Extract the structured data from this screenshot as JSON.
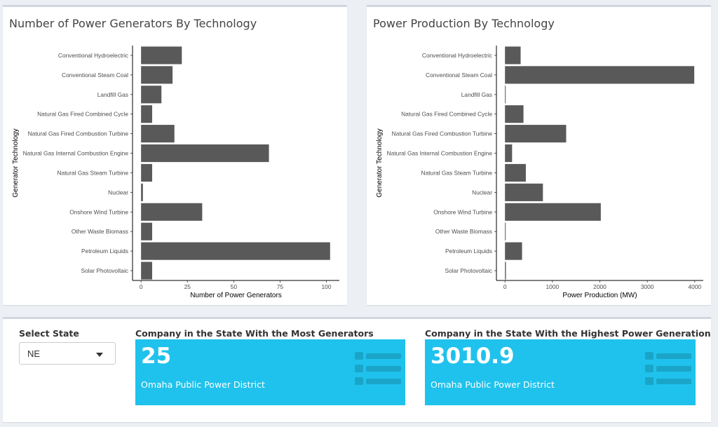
{
  "charts": {
    "left": {
      "title": "Number of Power Generators By Technology",
      "chart_data": {
        "type": "bar",
        "orientation": "horizontal",
        "categories": [
          "Conventional Hydroelectric",
          "Conventional Steam Coal",
          "Landfill Gas",
          "Natural Gas Fired Combined Cycle",
          "Natural Gas Fired Combustion Turbine",
          "Natural Gas Internal Combustion Engine",
          "Natural Gas Steam Turbine",
          "Nuclear",
          "Onshore Wind Turbine",
          "Other Waste Biomass",
          "Petroleum Liquids",
          "Solar Photovoltaic"
        ],
        "values": [
          22,
          17,
          11,
          6,
          18,
          69,
          6,
          1,
          33,
          6,
          102,
          6
        ],
        "xlabel": "Number of Power Generators",
        "ylabel": "Generator Technology",
        "xticks": [
          0,
          25,
          50,
          75,
          100
        ],
        "xlim": [
          -4.6,
          107
        ],
        "bar_color": "#595959"
      }
    },
    "right": {
      "title": "Power Production By Technology",
      "chart_data": {
        "type": "bar",
        "orientation": "horizontal",
        "categories": [
          "Conventional Hydroelectric",
          "Conventional Steam Coal",
          "Landfill Gas",
          "Natural Gas Fired Combined Cycle",
          "Natural Gas Fired Combustion Turbine",
          "Natural Gas Internal Combustion Engine",
          "Natural Gas Steam Turbine",
          "Nuclear",
          "Onshore Wind Turbine",
          "Other Waste Biomass",
          "Petroleum Liquids",
          "Solar Photovoltaic"
        ],
        "values": [
          330,
          3990,
          15,
          390,
          1290,
          150,
          440,
          800,
          2020,
          8,
          360,
          20
        ],
        "xlabel": "Power Production (MW)",
        "ylabel": "Generator Technology",
        "xticks": [
          0,
          1000,
          2000,
          3000,
          4000
        ],
        "xlim": [
          -180,
          4180
        ],
        "bar_color": "#595959"
      }
    }
  },
  "controls": {
    "select_label": "Select State",
    "select_value": "NE"
  },
  "value_boxes": [
    {
      "header": "Company in the State With the Most Generators",
      "value": "25",
      "subtitle": "Omaha Public Power District",
      "color": "#1fc2ec",
      "icon": "list-icon"
    },
    {
      "header": "Company in the State With the Highest Power Generation",
      "value": "3010.9",
      "subtitle": "Omaha Public Power District",
      "color": "#1fc2ec",
      "icon": "list-icon"
    }
  ]
}
